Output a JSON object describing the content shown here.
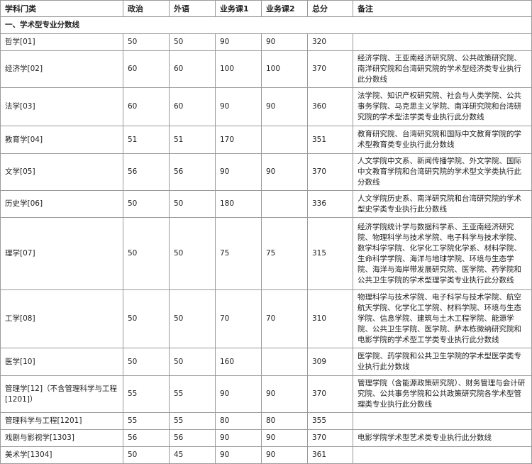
{
  "headers": [
    "学科门类",
    "政治",
    "外语",
    "业务课1",
    "业务课2",
    "总分",
    "备注"
  ],
  "section_title": "一、学术型专业分数线",
  "rows": [
    {
      "subject": "哲学[01]",
      "politics": "50",
      "language": "50",
      "course1": "90",
      "course2": "90",
      "total": "320",
      "note": ""
    },
    {
      "subject": "经济学[02]",
      "politics": "60",
      "language": "60",
      "course1": "100",
      "course2": "100",
      "total": "370",
      "note": "经济学院、王亚南经济研究院、公共政策研究院、南洋研究院和台湾研究院的学术型经济类专业执行此分数线"
    },
    {
      "subject": "法学[03]",
      "politics": "60",
      "language": "60",
      "course1": "90",
      "course2": "90",
      "total": "360",
      "note": "法学院、知识产权研究院、社会与人类学院、公共事务学院、马克思主义学院、南洋研究院和台湾研究院的学术型法学类专业执行此分数线"
    },
    {
      "subject": "教育学[04]",
      "politics": "51",
      "language": "51",
      "course1": "170",
      "course2": "",
      "total": "351",
      "note": "教育研究院、台湾研究院和国际中文教育学院的学术型教育类专业执行此分数线"
    },
    {
      "subject": "文学[05]",
      "politics": "56",
      "language": "56",
      "course1": "90",
      "course2": "90",
      "total": "370",
      "note": "人文学院中文系、新闻传播学院、外文学院、国际中文教育学院和台湾研究院的学术型文学类执行此分数线"
    },
    {
      "subject": "历史学[06]",
      "politics": "50",
      "language": "50",
      "course1": "180",
      "course2": "",
      "total": "336",
      "note": "人文学院历史系、南洋研究院和台湾研究院的学术型史学类专业执行此分数线"
    },
    {
      "subject": "理学[07]",
      "politics": "50",
      "language": "50",
      "course1": "75",
      "course2": "75",
      "total": "315",
      "note": "经济学院统计学与数据科学系、王亚南经济研究院、物理科学与技术学院、电子科学与技术学院、数学科学学院、化学化工学院化学系、材料学院、生命科学学院、海洋与地球学院、环境与生态学院、海洋与海岸带发展研究院、医学院、药学院和公共卫生学院的学术型理学类专业执行此分数线"
    },
    {
      "subject": "工学[08]",
      "politics": "50",
      "language": "50",
      "course1": "70",
      "course2": "70",
      "total": "310",
      "note": "物理科学与技术学院、电子科学与技术学院、航空航天学院、化学化工学院、材料学院、环境与生态学院、信息学院、建筑与土木工程学院、能源学院、公共卫生学院、医学院、萨本栋微纳研究院和电影学院的学术型工学类专业执行此分数线"
    },
    {
      "subject": "医学[10]",
      "politics": "50",
      "language": "50",
      "course1": "160",
      "course2": "",
      "total": "309",
      "note": "医学院、药学院和公共卫生学院的学术型医学类专业执行此分数线"
    },
    {
      "subject": "管理学[12]（不含管理科学与工程[1201]）",
      "politics": "55",
      "language": "55",
      "course1": "90",
      "course2": "90",
      "total": "370",
      "note": "管理学院（含能源政策研究院）、财务管理与会计研究院、公共事务学院和公共政策研究院各学术型管理类专业执行此分数线"
    },
    {
      "subject": "管理科学与工程[1201]",
      "politics": "55",
      "language": "55",
      "course1": "80",
      "course2": "80",
      "total": "355",
      "note": ""
    },
    {
      "subject": "戏剧与影视学[1303]",
      "politics": "56",
      "language": "56",
      "course1": "90",
      "course2": "90",
      "total": "370",
      "note": "电影学院学术型艺术类专业执行此分数线"
    },
    {
      "subject": "美术学[1304]",
      "politics": "50",
      "language": "45",
      "course1": "90",
      "course2": "90",
      "total": "361",
      "note": ""
    }
  ]
}
